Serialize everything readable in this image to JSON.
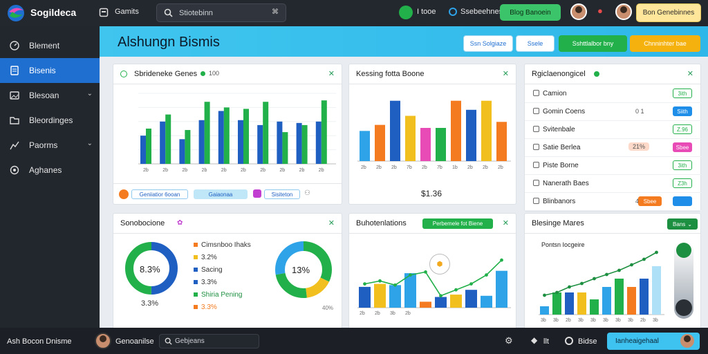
{
  "app": {
    "title": "Sogildeca"
  },
  "topbar": {
    "item1": "Gamits",
    "search_placeholder": "Stiotebinn",
    "item2": "I tooe",
    "item3": "Ssebeehnes",
    "green_button": "Blog Banoein",
    "yellow_button": "Bon Genebinnes"
  },
  "sidebar": {
    "items": [
      {
        "label": "Blement",
        "icon": "gauge-icon"
      },
      {
        "label": "Bisenis",
        "icon": "document-icon"
      },
      {
        "label": "Blesoan",
        "icon": "image-icon"
      },
      {
        "label": "Bleordinges",
        "icon": "folder-icon"
      },
      {
        "label": "Paorms",
        "icon": "chart-icon"
      },
      {
        "label": "Aghanes",
        "icon": "settings-icon"
      }
    ]
  },
  "header": {
    "title": "Alshungn Bismis",
    "btn1": "Ssn Solgiaze",
    "btn2": "Ssele",
    "btn3": "Sshttlalbor bny",
    "btn4": "Chnninhter bae"
  },
  "card1": {
    "title": "Sbrideneke Genes",
    "badge": "100",
    "tags": [
      "Geniiatior 6ooan",
      "Gaiaonaa",
      "Sisiteton"
    ],
    "chart_data": {
      "type": "bar",
      "categories": [
        "2b",
        "2b",
        "2b",
        "2b",
        "2b",
        "2b",
        "2b",
        "2b",
        "2b",
        "2b"
      ],
      "series": [
        {
          "color": "#1f5fc2",
          "values": [
            40,
            60,
            35,
            62,
            75,
            62,
            55,
            60,
            58,
            60
          ]
        },
        {
          "color": "#22b04a",
          "values": [
            50,
            70,
            48,
            88,
            80,
            78,
            88,
            45,
            55,
            90
          ]
        }
      ],
      "ylim": [
        0,
        100
      ]
    }
  },
  "card2": {
    "title": "Kessing fotta Boone",
    "value_label": "$1.36",
    "chart_data": {
      "type": "bar",
      "categories": [
        "2b",
        "2b",
        "2b",
        "7b",
        "2b",
        "7b",
        "1b",
        "2b",
        "2b",
        "2b"
      ],
      "values": [
        50,
        60,
        100,
        75,
        55,
        55,
        100,
        85,
        100,
        65
      ],
      "colors": [
        "#2ea3e8",
        "#f47b20",
        "#1f5fc2",
        "#f2c01e",
        "#e84bb6",
        "#22b04a",
        "#f47b20",
        "#1f5fc2",
        "#f2c01e",
        "#f47b20"
      ],
      "ylim": [
        0,
        110
      ]
    }
  },
  "card3": {
    "title": "Rgiclaenongicel",
    "rows": [
      {
        "label": "Camion",
        "value": "",
        "badge": "3ith",
        "badge_style": "outline-green"
      },
      {
        "label": "Gomin Coens",
        "value": "0 1 ",
        "badge": "Siith",
        "badge_style": "blue"
      },
      {
        "label": "Svitenbale",
        "value": "",
        "badge": "Z.96",
        "badge_style": "outline-green"
      },
      {
        "label": "Satie Berlea",
        "value": "21%",
        "badge": "Sbee",
        "badge_style": "pink"
      },
      {
        "label": "Piste Borne",
        "value": "",
        "badge": "3ith",
        "badge_style": "outline-green"
      },
      {
        "label": "Nanerath Baes",
        "value": "",
        "badge": "Z3h",
        "badge_style": "outline-green"
      },
      {
        "label": "Blinbanors",
        "value": "4 5o",
        "badge": "Sbee",
        "badge_style": "blue"
      }
    ]
  },
  "card4": {
    "title": "Sonobocione",
    "donut1_label": "8.3%",
    "donut1_sub": "3.3%",
    "donut2_label": "13%",
    "donut2_sub": "40%",
    "legend": [
      {
        "label": "Cimsnboo Ihaks",
        "color": "#f47b20"
      },
      {
        "label": "3.2%",
        "color": "#f2c01e"
      },
      {
        "label": "Sacing",
        "color": "#1f5fc2"
      },
      {
        "label": "3.3%",
        "color": "#1f5fc2"
      },
      {
        "label": "Shiria Pening",
        "color": "#22b04a"
      },
      {
        "label": "3.3%",
        "color": "#f47b20"
      }
    ],
    "chart_data": {
      "type": "pie",
      "donut1": [
        {
          "value": 50,
          "color": "#1f5fc2"
        },
        {
          "value": 50,
          "color": "#22b04a"
        }
      ],
      "donut2": [
        {
          "value": 32,
          "color": "#22b04a"
        },
        {
          "value": 16,
          "color": "#f2c01e"
        },
        {
          "value": 24,
          "color": "#22b04a"
        },
        {
          "value": 28,
          "color": "#2ea3e8"
        }
      ]
    }
  },
  "card5": {
    "title": "Buhotenlations",
    "badge": "Perbemele fot Biene",
    "chart_data": {
      "type": "bar",
      "categories": [
        "2b",
        "2b",
        "3b",
        "2b",
        "",
        "",
        "",
        "",
        "",
        ""
      ],
      "values": [
        35,
        40,
        38,
        58,
        10,
        18,
        22,
        30,
        20,
        62
      ],
      "colors": [
        "#1f5fc2",
        "#f2c01e",
        "#2ea3e8",
        "#2ea3e8",
        "#f47b20",
        "#1f5fc2",
        "#f2c01e",
        "#1f5fc2",
        "#2ea3e8",
        "#2ea3e8"
      ],
      "line": [
        40,
        45,
        38,
        55,
        60,
        20,
        30,
        40,
        55,
        80
      ],
      "ylim": [
        0,
        100
      ]
    }
  },
  "card6": {
    "title": "Blesinge Mares",
    "button": "Bans",
    "subtitle": "Pontsn Iocgeire",
    "chart_data": {
      "type": "bar",
      "categories": [
        "3b",
        "3b",
        "2b",
        "3b",
        "3b",
        "3b",
        "3b",
        "3b",
        "2b",
        "3b"
      ],
      "values": [
        12,
        32,
        32,
        32,
        22,
        40,
        52,
        40,
        52,
        70
      ],
      "colors": [
        "#2ea3e8",
        "#22b04a",
        "#1f5fc2",
        "#f2c01e",
        "#22b04a",
        "#2ea3e8",
        "#22b04a",
        "#f47b20",
        "#1f5fc2",
        "#aee0f7"
      ],
      "line": [
        28,
        32,
        40,
        45,
        52,
        58,
        64,
        72,
        80,
        90
      ],
      "ylim": [
        0,
        100
      ]
    }
  },
  "bottombar": {
    "left_label": "Ash Bocon Dnisme",
    "user_name": "Genoanilse",
    "search_placeholder": "Gebjeans",
    "item1": "llt",
    "item2": "Bidse",
    "cta": "Ianheaigehaal"
  },
  "colors": {
    "accent": "#1f6fd1",
    "green": "#22b04a",
    "blue": "#1f5fc2",
    "sky": "#2ea3e8",
    "yellow": "#f2c01e",
    "orange": "#f47b20"
  }
}
